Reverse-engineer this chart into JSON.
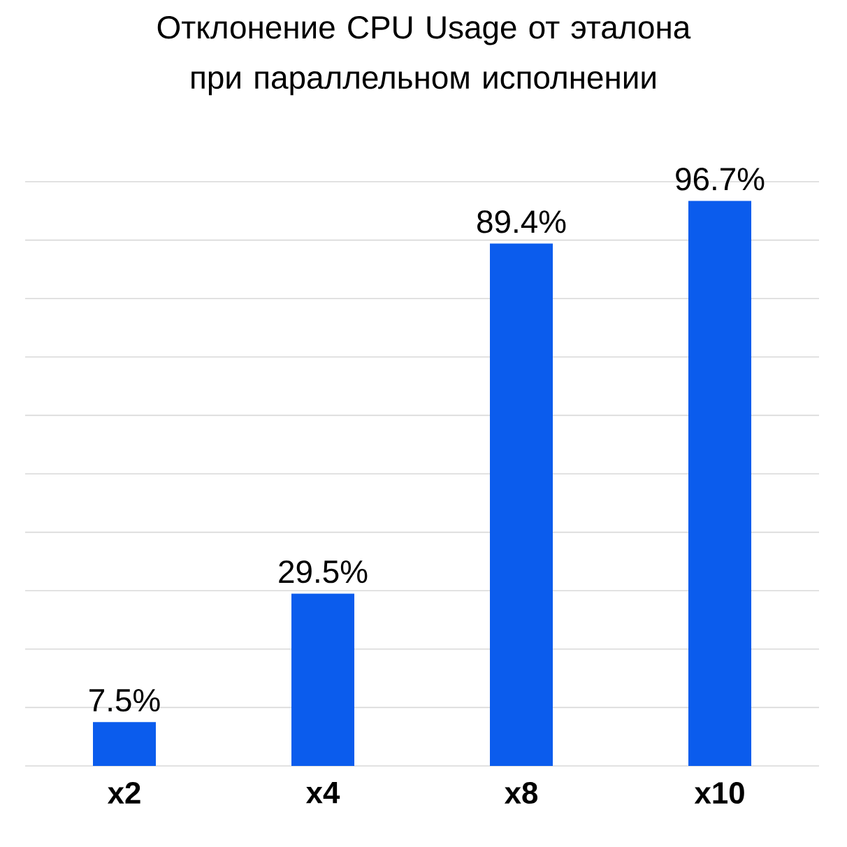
{
  "chart_data": {
    "type": "bar",
    "title": "Отклонение CPU Usage от эталона при параллельном исполнении",
    "categories": [
      "x2",
      "x4",
      "x8",
      "x10"
    ],
    "values": [
      7.5,
      29.5,
      89.4,
      96.7
    ],
    "value_labels": [
      "7.5%",
      "29.5%",
      "89.4%",
      "96.7%"
    ],
    "color": "#0b5ced",
    "ylim": [
      0,
      100
    ],
    "yticks": [
      {
        "value": 0,
        "label": null
      },
      {
        "value": 10,
        "label": null
      },
      {
        "value": 20,
        "label": null
      },
      {
        "value": 30,
        "label": null
      },
      {
        "value": 40,
        "label": null
      },
      {
        "value": 50,
        "label": null
      },
      {
        "value": 60,
        "label": null
      },
      {
        "value": 70,
        "label": null
      },
      {
        "value": 80,
        "label": null
      },
      {
        "value": 90,
        "label": null
      },
      {
        "value": 100,
        "label": null
      }
    ],
    "grid": "y"
  }
}
